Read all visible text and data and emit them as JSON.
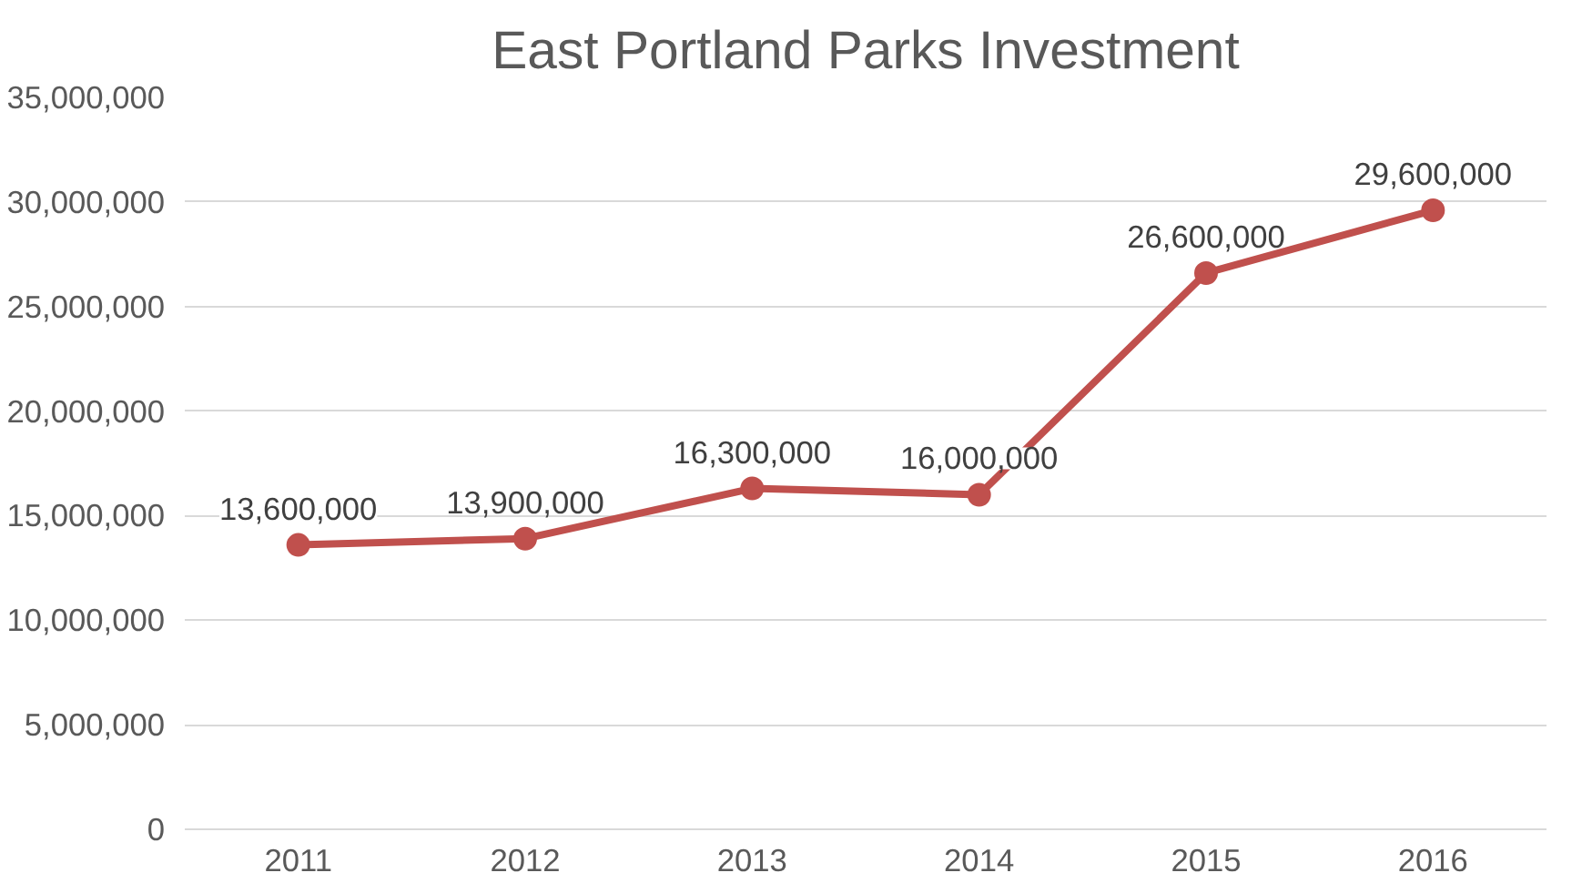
{
  "chart_data": {
    "type": "line",
    "title": "East Portland Parks Investment",
    "categories": [
      "2011",
      "2012",
      "2013",
      "2014",
      "2015",
      "2016"
    ],
    "series": [
      {
        "color": "#c0504d",
        "values": [
          13600000,
          13900000,
          16300000,
          16000000,
          26600000,
          29600000
        ]
      }
    ],
    "ylim": [
      0,
      35000000
    ],
    "yticks": [
      {
        "value": 0,
        "label": "0"
      },
      {
        "value": 5000000,
        "label": "5,000,000"
      },
      {
        "value": 10000000,
        "label": "10,000,000"
      },
      {
        "value": 15000000,
        "label": "15,000,000"
      },
      {
        "value": 20000000,
        "label": "20,000,000"
      },
      {
        "value": 25000000,
        "label": "25,000,000"
      },
      {
        "value": 30000000,
        "label": "30,000,000"
      },
      {
        "value": 35000000,
        "label": "35,000,000"
      }
    ],
    "value_labels": [
      "13,600,000",
      "13,900,000",
      "16,300,000",
      "16,000,000",
      "26,600,000",
      "29,600,000"
    ],
    "grid": "y",
    "marker": "circle",
    "line_style": "solid"
  }
}
